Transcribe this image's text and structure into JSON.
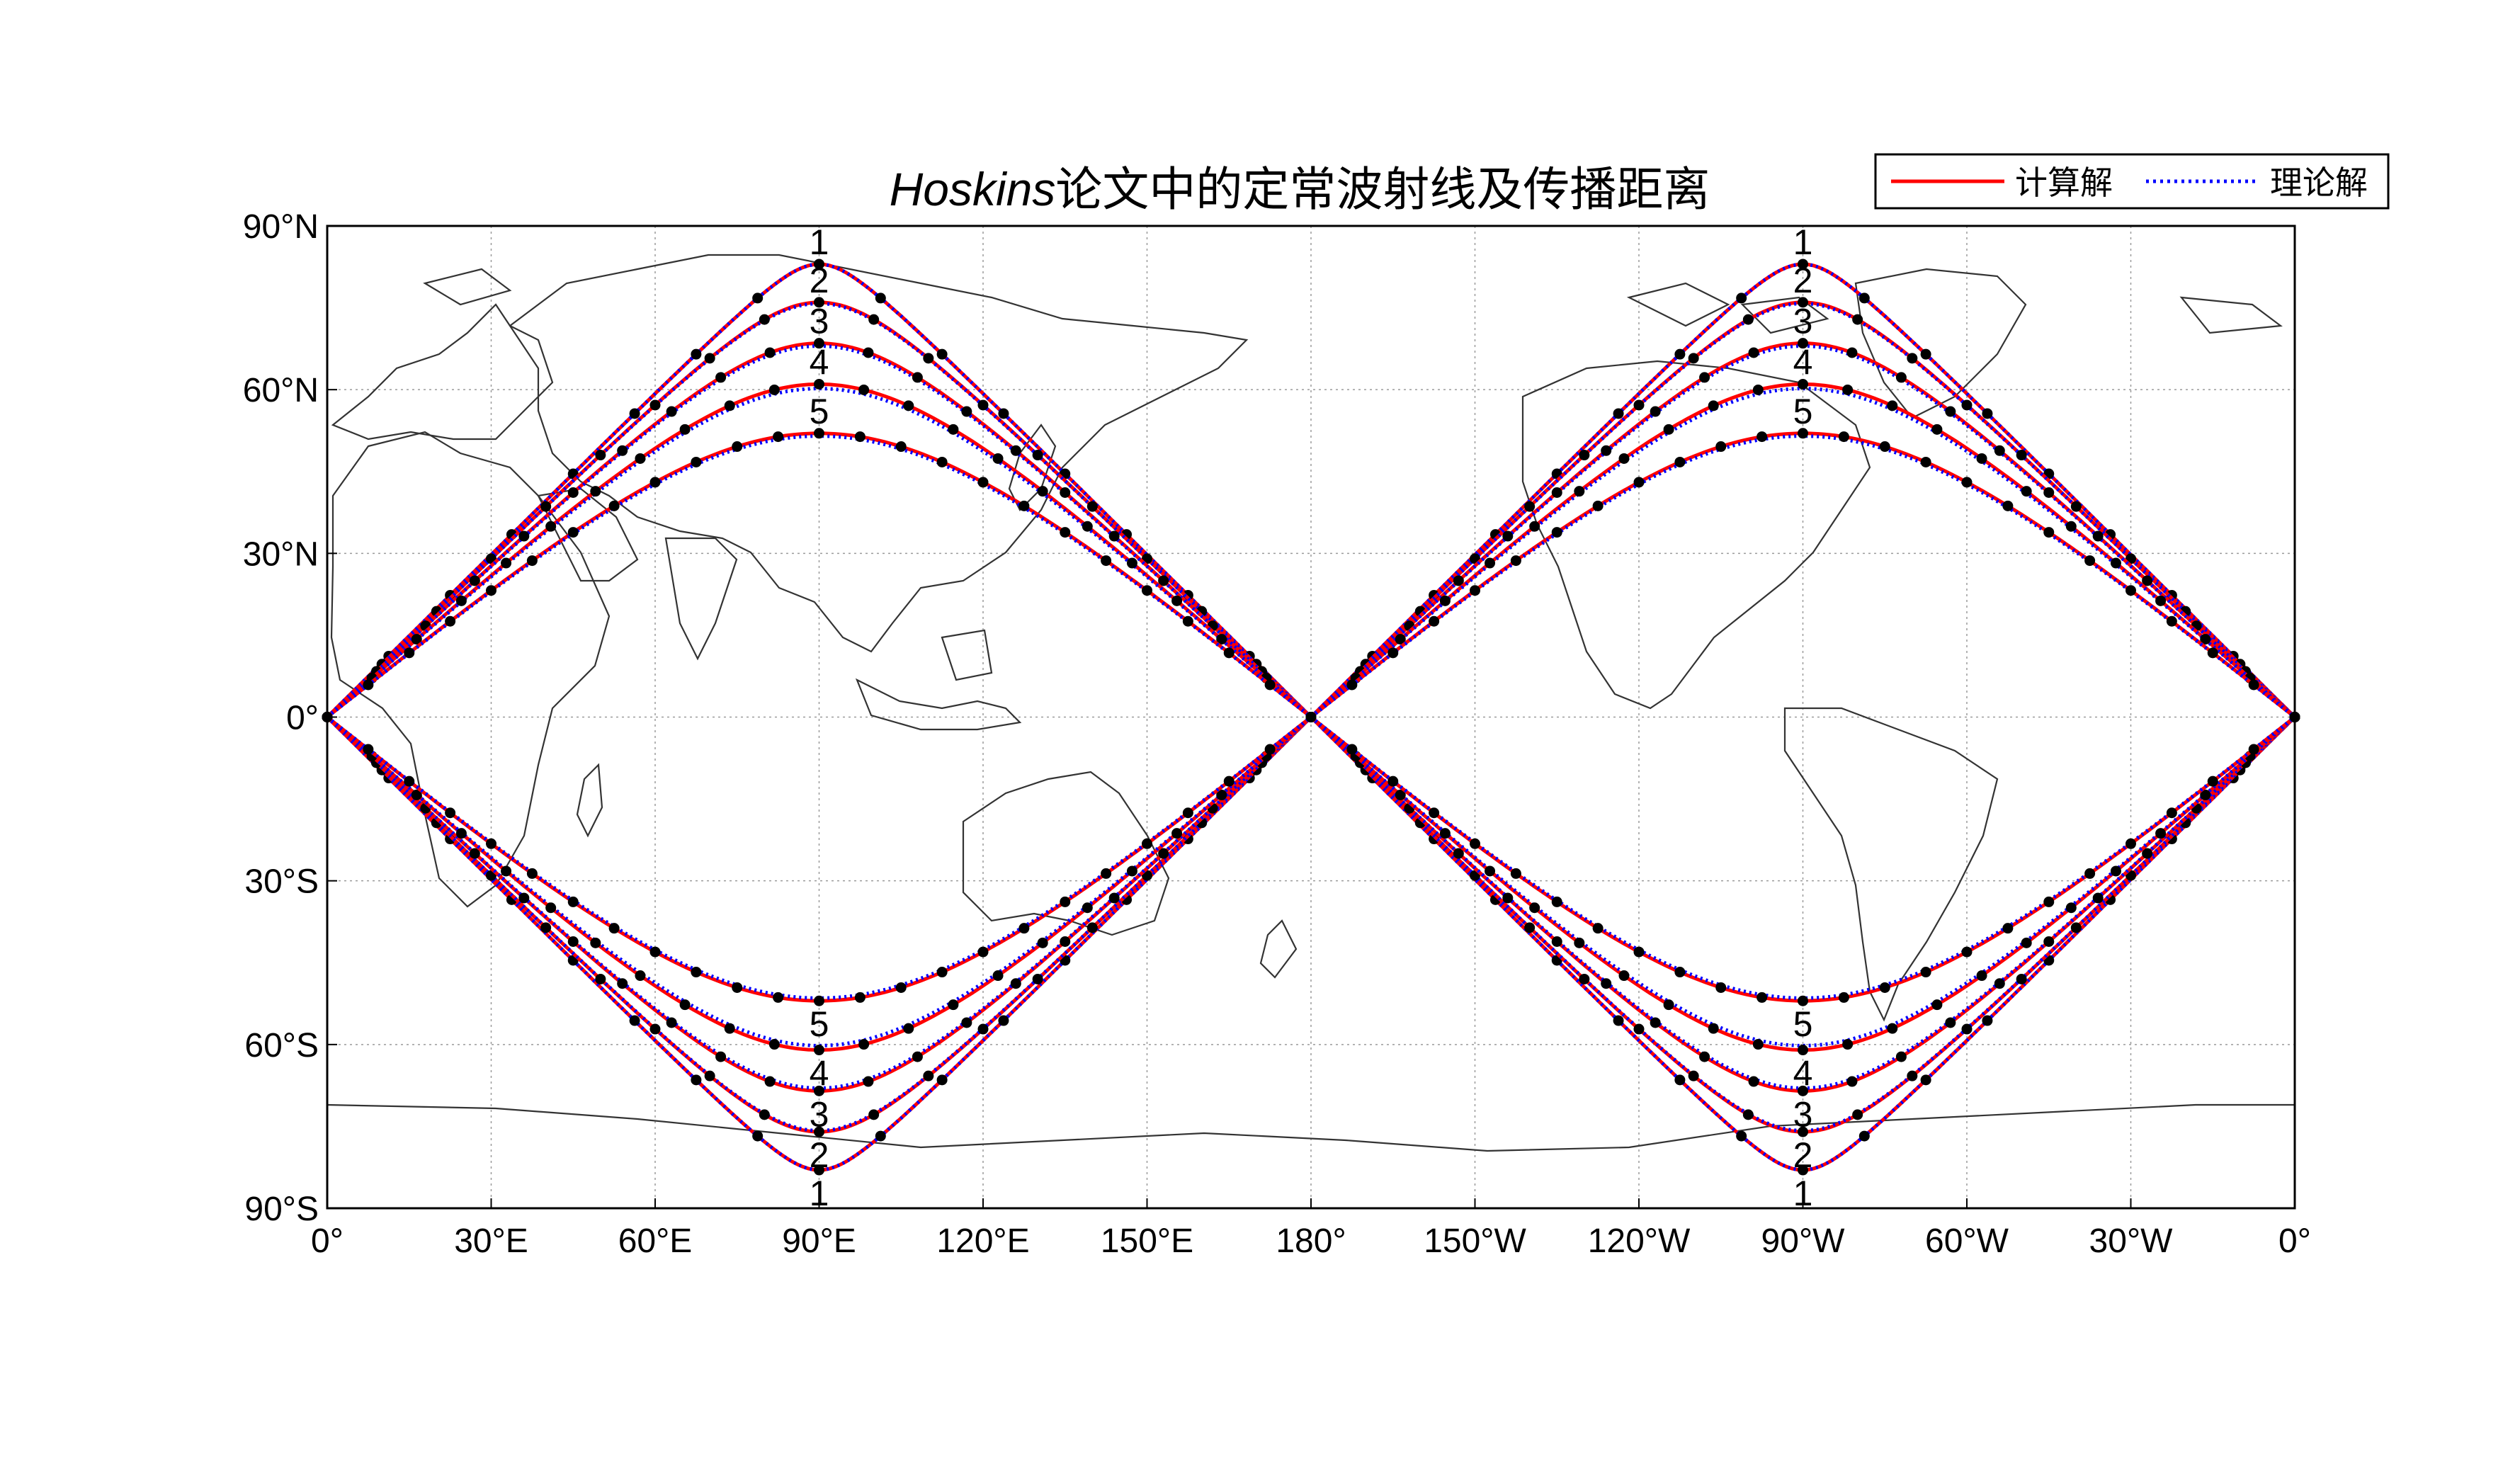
{
  "chart_data": {
    "type": "line",
    "title_en": "Hoskins",
    "title_cn": "论文中的定常波射线及传播距离",
    "xlabel": "",
    "ylabel": "",
    "xlim": [
      0,
      360
    ],
    "ylim": [
      -90,
      90
    ],
    "grid": true,
    "legend_position": "top-right",
    "x_tick_labels": [
      "0°",
      "30°E",
      "60°E",
      "90°E",
      "120°E",
      "150°E",
      "180°",
      "150°W",
      "120°W",
      "90°W",
      "60°W",
      "30°W",
      "0°"
    ],
    "y_tick_labels": [
      "90°N",
      "60°N",
      "30°N",
      "0°",
      "30°S",
      "60°S",
      "90°S"
    ],
    "series": [
      {
        "name": "计算解",
        "color": "#ff0000",
        "style": "solid"
      },
      {
        "name": "理论解",
        "color": "#0000ff",
        "style": "dotted"
      }
    ],
    "ray_labels": [
      "1",
      "2",
      "3",
      "4",
      "5"
    ],
    "rays": {
      "peak_latitudes_computed": [
        83,
        76,
        68.5,
        61,
        52
      ],
      "peak_latitudes_theoretical": [
        83,
        75.8,
        68,
        60.2,
        51.5
      ],
      "sources_lon": [
        0,
        180
      ],
      "peak_lon_east": 90,
      "peak_lon_west": 270,
      "hemispheres": [
        "north",
        "south"
      ]
    },
    "dot_color": "#000000"
  }
}
